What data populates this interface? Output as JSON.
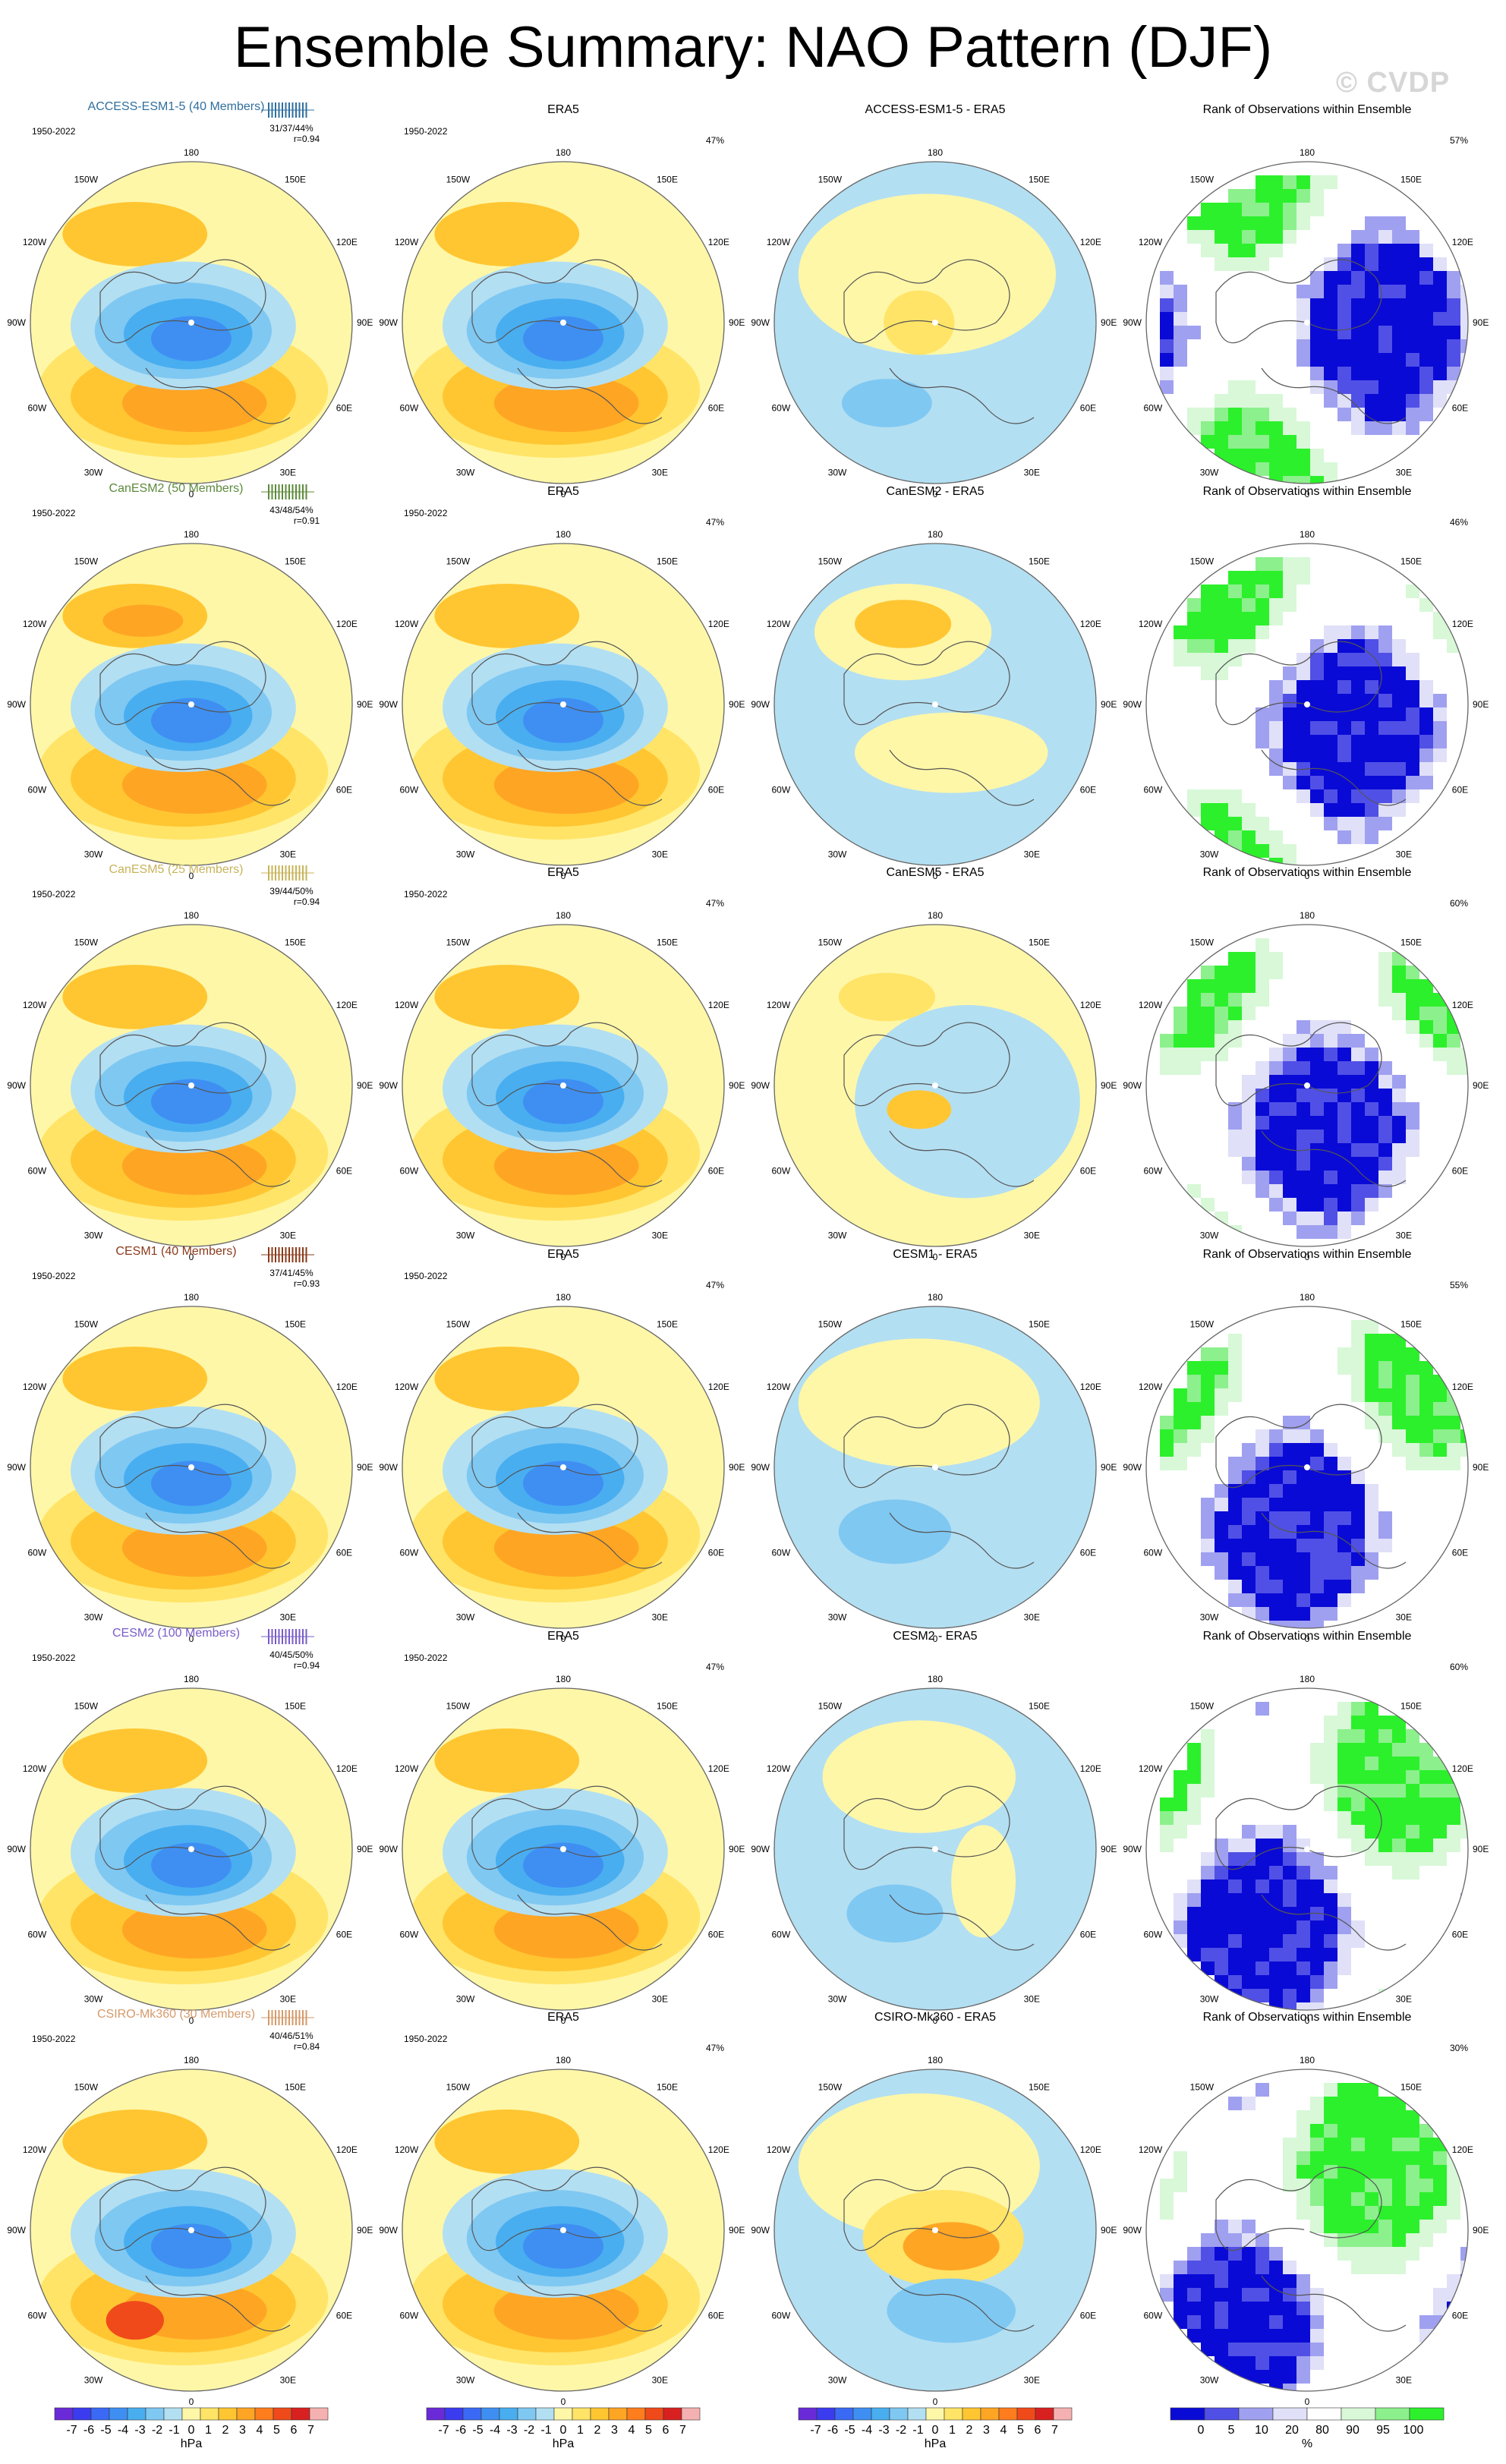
{
  "title": "Ensemble Summary: NAO Pattern (DJF)",
  "watermark": "© CVDP",
  "period": "1950-2022",
  "longitude_labels": {
    "top": "180",
    "bottom": "0",
    "upper_left": "150W",
    "upper_right": "150E",
    "mid_upper_left": "120W",
    "mid_upper_right": "120E",
    "left": "90W",
    "right": "90E",
    "lower_left": "60W",
    "lower_right": "60E",
    "bottom_left": "30W",
    "bottom_right": "30E"
  },
  "colors": {
    "model_access": "#2f6f9f",
    "model_canesm2": "#5c8a3a",
    "model_canesm5": "#c8b45a",
    "model_cesm1": "#8b3a1a",
    "model_cesm2": "#7a5cc8",
    "model_csiro": "#d49a6a",
    "land_outline": "#555555",
    "circle_outline": "#666666"
  },
  "chart_data": {
    "type": "heatmap",
    "description_units": "hPa",
    "rows": [
      {
        "model": "ACCESS-ESM1-5 (40 Members)",
        "model_color_key": "model_access",
        "stats": "31/37/44%",
        "r": "r=0.94",
        "era5_pct": "47%",
        "diff_title": "ACCESS-ESM1-5 - ERA5",
        "rank_title": "Rank of Observations within Ensemble",
        "rank_pct": "57%"
      },
      {
        "model": "CanESM2 (50 Members)",
        "model_color_key": "model_canesm2",
        "stats": "43/48/54%",
        "r": "r=0.91",
        "era5_pct": "47%",
        "diff_title": "CanESM2 - ERA5",
        "rank_title": "Rank of Observations within Ensemble",
        "rank_pct": "46%"
      },
      {
        "model": "CanESM5 (25 Members)",
        "model_color_key": "model_canesm5",
        "stats": "39/44/50%",
        "r": "r=0.94",
        "era5_pct": "47%",
        "diff_title": "CanESM5 - ERA5",
        "rank_title": "Rank of Observations within Ensemble",
        "rank_pct": "60%"
      },
      {
        "model": "CESM1 (40 Members)",
        "model_color_key": "model_cesm1",
        "stats": "37/41/45%",
        "r": "r=0.93",
        "era5_pct": "47%",
        "diff_title": "CESM1 - ERA5",
        "rank_title": "Rank of Observations within Ensemble",
        "rank_pct": "55%"
      },
      {
        "model": "CESM2 (100 Members)",
        "model_color_key": "model_cesm2",
        "stats": "40/45/50%",
        "r": "r=0.94",
        "era5_pct": "47%",
        "diff_title": "CESM2 - ERA5",
        "rank_title": "Rank of Observations within Ensemble",
        "rank_pct": "60%"
      },
      {
        "model": "CSIRO-Mk360 (30 Members)",
        "model_color_key": "model_csiro",
        "stats": "40/46/51%",
        "r": "r=0.84",
        "era5_pct": "47%",
        "diff_title": "CSIRO-Mk360 - ERA5",
        "rank_title": "Rank of Observations within Ensemble",
        "rank_pct": "30%"
      }
    ],
    "obs_title": "ERA5",
    "colorbar_hpa": {
      "labels": [
        "-7",
        "-6",
        "-5",
        "-4",
        "-3",
        "-2",
        "-1",
        "0",
        "1",
        "2",
        "3",
        "4",
        "5",
        "6",
        "7"
      ],
      "colors": [
        "#6a2ad8",
        "#3b3bf0",
        "#3a6af5",
        "#3f8ff3",
        "#48aef0",
        "#7fc8f2",
        "#b3dff2",
        "#fff7a8",
        "#ffe467",
        "#ffc632",
        "#ffa524",
        "#ff7d1d",
        "#f04a1a",
        "#d92020",
        "#f5b1b1"
      ],
      "unit": "hPa"
    },
    "colorbar_rank": {
      "labels": [
        "0",
        "5",
        "10",
        "20",
        "80",
        "90",
        "95",
        "100"
      ],
      "colors": [
        "#0a0ad6",
        "#5050e6",
        "#a0a0f0",
        "#e0e0f8",
        "#ffffff",
        "#d8f8d8",
        "#8cf08c",
        "#2cf02c"
      ],
      "unit": "%"
    }
  }
}
